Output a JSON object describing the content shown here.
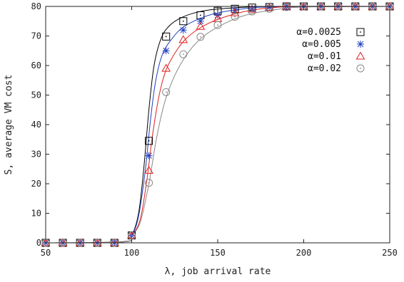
{
  "chart_data": {
    "type": "scatter",
    "title": "",
    "xlabel": "λ, job arrival rate",
    "ylabel": "S, average VM cost",
    "xlim": [
      50,
      250
    ],
    "ylim": [
      0,
      80
    ],
    "xticks": [
      50,
      100,
      150,
      200,
      250
    ],
    "yticks": [
      0,
      10,
      20,
      30,
      40,
      50,
      60,
      70,
      80
    ],
    "grid": false,
    "legend": "right, below top",
    "x": [
      50,
      60,
      70,
      80,
      90,
      100,
      110,
      120,
      130,
      140,
      150,
      160,
      170,
      180,
      190,
      200,
      210,
      220,
      230,
      240,
      250
    ],
    "series": [
      {
        "name": "α=0.0025",
        "marker": "square-dot",
        "color": "#000000",
        "values": [
          0,
          0,
          0,
          0,
          0,
          2.5,
          34.5,
          69.8,
          75,
          77,
          78.5,
          79.2,
          79.6,
          79.8,
          80,
          80,
          80,
          80,
          80,
          80,
          80
        ],
        "fit": [
          [
            50,
            0
          ],
          [
            95,
            0.4
          ],
          [
            100,
            2.5
          ],
          [
            104,
            10
          ],
          [
            107,
            25
          ],
          [
            110,
            45
          ],
          [
            113,
            60
          ],
          [
            117,
            69
          ],
          [
            122,
            73.5
          ],
          [
            130,
            76.5
          ],
          [
            140,
            78.3
          ],
          [
            150,
            79.1
          ],
          [
            165,
            79.7
          ],
          [
            180,
            80
          ],
          [
            250,
            80
          ]
        ]
      },
      {
        "name": "α=0.005",
        "marker": "asterisk",
        "color": "#1f3fbf",
        "values": [
          0,
          0,
          0,
          0,
          0,
          2.5,
          29.5,
          65,
          72,
          75,
          77,
          78.7,
          79.3,
          79.7,
          80,
          80,
          80,
          80,
          80,
          80,
          80
        ],
        "fit": [
          [
            50,
            0
          ],
          [
            95,
            0.3
          ],
          [
            100,
            2.5
          ],
          [
            104,
            9
          ],
          [
            108,
            25
          ],
          [
            111,
            42
          ],
          [
            114,
            55
          ],
          [
            118,
            64
          ],
          [
            124,
            69.5
          ],
          [
            130,
            73
          ],
          [
            140,
            76
          ],
          [
            150,
            77.8
          ],
          [
            165,
            79.2
          ],
          [
            180,
            79.8
          ],
          [
            250,
            80
          ]
        ]
      },
      {
        "name": "α=0.01",
        "marker": "triangle",
        "color": "#e02020",
        "values": [
          0,
          0,
          0,
          0,
          0,
          2.5,
          24.5,
          59,
          68.7,
          73.2,
          75.8,
          77.8,
          79,
          79.6,
          80,
          80,
          80,
          80,
          80,
          80,
          80
        ],
        "fit": [
          [
            50,
            0
          ],
          [
            95,
            0.3
          ],
          [
            100,
            2.5
          ],
          [
            105,
            8
          ],
          [
            109,
            22
          ],
          [
            112,
            36
          ],
          [
            116,
            50
          ],
          [
            120,
            58.5
          ],
          [
            126,
            65
          ],
          [
            132,
            69.3
          ],
          [
            140,
            72.8
          ],
          [
            150,
            75.6
          ],
          [
            165,
            78.2
          ],
          [
            180,
            79.5
          ],
          [
            200,
            80
          ],
          [
            250,
            80
          ]
        ]
      },
      {
        "name": "α=0.02",
        "marker": "circle-dot",
        "color": "#888888",
        "values": [
          0,
          0,
          0,
          0,
          0,
          2.5,
          20.3,
          51,
          63.8,
          69.7,
          73.7,
          76.5,
          78.3,
          79.2,
          79.8,
          80,
          80,
          80,
          80,
          80,
          80
        ],
        "fit": [
          [
            50,
            0
          ],
          [
            95,
            0.3
          ],
          [
            100,
            2.5
          ],
          [
            105,
            7
          ],
          [
            110,
            20
          ],
          [
            114,
            34
          ],
          [
            118,
            45
          ],
          [
            122,
            52.5
          ],
          [
            128,
            60
          ],
          [
            135,
            66
          ],
          [
            142,
            70
          ],
          [
            150,
            73
          ],
          [
            160,
            75.8
          ],
          [
            170,
            77.6
          ],
          [
            185,
            79
          ],
          [
            200,
            79.8
          ],
          [
            250,
            80
          ]
        ]
      }
    ]
  }
}
